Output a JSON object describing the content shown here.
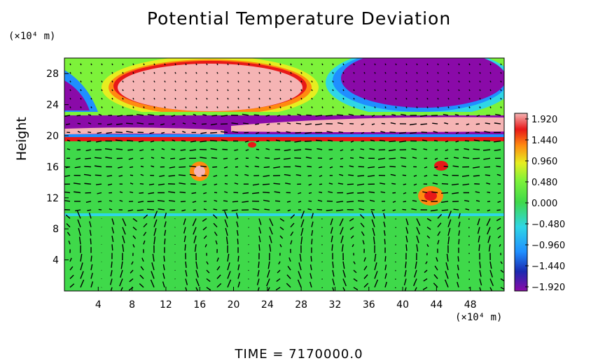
{
  "chart_data": {
    "type": "heatmap",
    "title": "Potential Temperature Deviation",
    "ylabel": "Height",
    "y_unit": "(×10⁴ m)",
    "x_unit": "(×10⁴ m)",
    "xlim": [
      0,
      52
    ],
    "ylim": [
      0,
      30
    ],
    "x_ticks": [
      4,
      8,
      12,
      16,
      20,
      24,
      28,
      32,
      36,
      40,
      44,
      48
    ],
    "y_ticks": [
      4,
      8,
      12,
      16,
      20,
      24,
      28
    ],
    "colorbar": {
      "min": -1.92,
      "max": 1.92,
      "labels": [
        "1.920",
        "1.440",
        "0.960",
        "0.480",
        "0.000",
        "−0.480",
        "−0.960",
        "−1.440",
        "−1.920"
      ],
      "colors": [
        "#8a0aa8",
        "#1a2ab0",
        "#1f8fff",
        "#2fd6e6",
        "#3fd94a",
        "#7df23a",
        "#e6ee20",
        "#ff8a10",
        "#e81818",
        "#f5b4b4"
      ]
    },
    "overlay": "velocity vectors (arrows)",
    "grid": false,
    "time": "TIME = 7170000.0"
  }
}
